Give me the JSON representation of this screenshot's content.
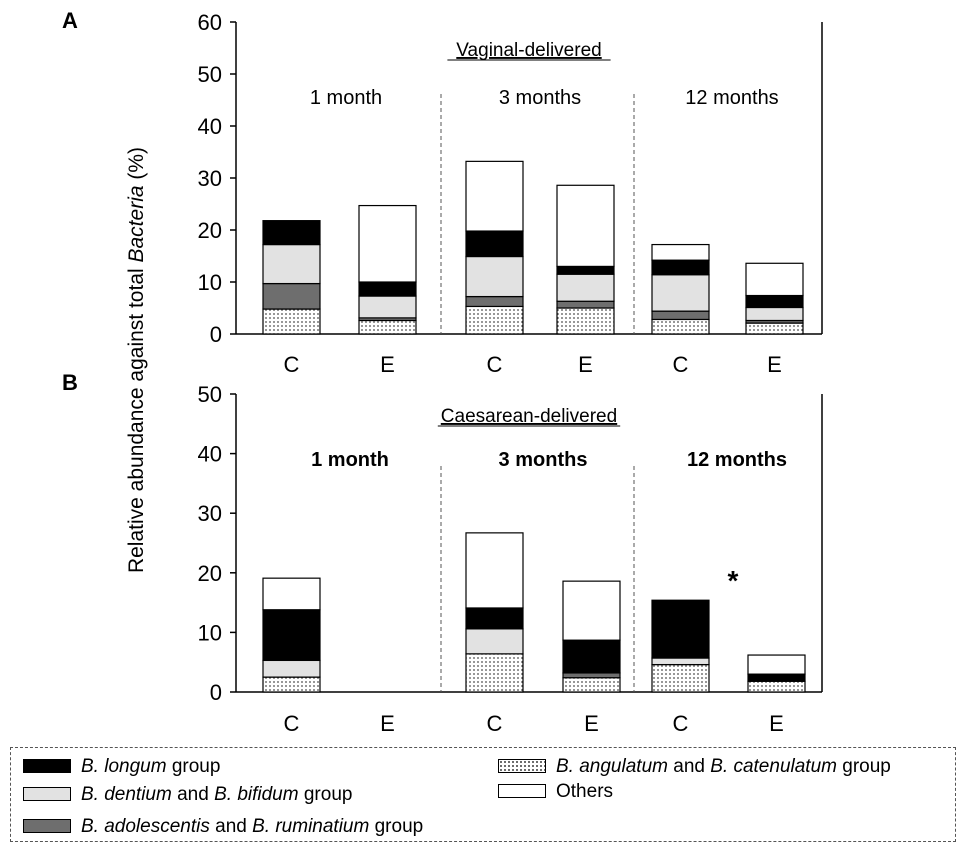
{
  "ylabel_parts": [
    "Relative abundance against total ",
    "Bacteria",
    " (%)"
  ],
  "categories_x": [
    "C",
    "E"
  ],
  "colors": {
    "longum": "#000000",
    "dentium_bifidum": "#e2e2e2",
    "adolescentis_ruminatium": "#6e6e6e",
    "angulatum_catenulatum": "dotted",
    "others": "#ffffff"
  },
  "legend": {
    "longum": [
      "B. longum",
      " group"
    ],
    "dentium_bifidum": [
      "B. dentium",
      " and ",
      "B. bifidum",
      " group"
    ],
    "adolescentis_ruminatium": [
      "B. adolescentis",
      " and ",
      "B. ruminatium",
      " group"
    ],
    "angulatum_catenulatum": [
      "B. angulatum",
      " and ",
      "B. catenulatum",
      " group"
    ],
    "others": "Others"
  },
  "chart_data": [
    {
      "type": "bar",
      "stacked": true,
      "panel_label": "A",
      "title": "Vaginal-delivered",
      "ylim": [
        0,
        60
      ],
      "yticks": [
        "0",
        "10",
        "20",
        "30",
        "40",
        "50",
        "60"
      ],
      "timepoints": [
        "1 month",
        "3 months",
        "12 months"
      ],
      "title_bold": false,
      "bars": [
        {
          "timepoint": "1 month",
          "x": "C",
          "stack": {
            "angulatum_catenulatum": 4.8,
            "adolescentis_ruminatium": 4.9,
            "dentium_bifidum": 7.5,
            "longum": 4.6,
            "others": 0
          }
        },
        {
          "timepoint": "1 month",
          "x": "E",
          "stack": {
            "angulatum_catenulatum": 2.6,
            "adolescentis_ruminatium": 0.5,
            "dentium_bifidum": 4.2,
            "longum": 2.7,
            "others": 14.7
          }
        },
        {
          "timepoint": "3 months",
          "x": "C",
          "stack": {
            "angulatum_catenulatum": 5.3,
            "adolescentis_ruminatium": 1.9,
            "dentium_bifidum": 7.7,
            "longum": 4.9,
            "others": 13.4
          }
        },
        {
          "timepoint": "3 months",
          "x": "E",
          "stack": {
            "angulatum_catenulatum": 5.0,
            "adolescentis_ruminatium": 1.3,
            "dentium_bifidum": 5.2,
            "longum": 1.5,
            "others": 15.6
          }
        },
        {
          "timepoint": "12 months",
          "x": "C",
          "stack": {
            "angulatum_catenulatum": 2.8,
            "adolescentis_ruminatium": 1.6,
            "dentium_bifidum": 7.0,
            "longum": 2.8,
            "others": 3.0
          }
        },
        {
          "timepoint": "12 months",
          "x": "E",
          "stack": {
            "angulatum_catenulatum": 2.1,
            "adolescentis_ruminatium": 0.5,
            "dentium_bifidum": 2.5,
            "longum": 2.3,
            "others": 6.2
          }
        }
      ]
    },
    {
      "type": "bar",
      "stacked": true,
      "panel_label": "B",
      "title": "Caesarean-delivered",
      "ylim": [
        0,
        50
      ],
      "yticks": [
        "0",
        "10",
        "20",
        "30",
        "40",
        "50"
      ],
      "timepoints": [
        "1 month",
        "3 months",
        "12 months"
      ],
      "title_bold": true,
      "annotation": "*",
      "bars": [
        {
          "timepoint": "1 month",
          "x": "C",
          "stack": {
            "angulatum_catenulatum": 2.5,
            "adolescentis_ruminatium": 0,
            "dentium_bifidum": 2.8,
            "longum": 8.5,
            "others": 5.3
          }
        },
        {
          "timepoint": "1 month",
          "x": "E",
          "stack": {
            "angulatum_catenulatum": 0,
            "adolescentis_ruminatium": 0,
            "dentium_bifidum": 0,
            "longum": 0,
            "others": 0
          }
        },
        {
          "timepoint": "3 months",
          "x": "C",
          "stack": {
            "angulatum_catenulatum": 6.4,
            "adolescentis_ruminatium": 0,
            "dentium_bifidum": 4.2,
            "longum": 3.5,
            "others": 12.6
          }
        },
        {
          "timepoint": "3 months",
          "x": "E",
          "stack": {
            "angulatum_catenulatum": 2.4,
            "adolescentis_ruminatium": 0.8,
            "dentium_bifidum": 0,
            "longum": 5.5,
            "others": 9.9
          }
        },
        {
          "timepoint": "12 months",
          "x": "C",
          "stack": {
            "angulatum_catenulatum": 4.6,
            "adolescentis_ruminatium": 0,
            "dentium_bifidum": 1.1,
            "longum": 9.7,
            "others": 0
          }
        },
        {
          "timepoint": "12 months",
          "x": "E",
          "stack": {
            "angulatum_catenulatum": 1.8,
            "adolescentis_ruminatium": 0,
            "dentium_bifidum": 0,
            "longum": 1.2,
            "others": 3.2
          }
        }
      ]
    }
  ]
}
